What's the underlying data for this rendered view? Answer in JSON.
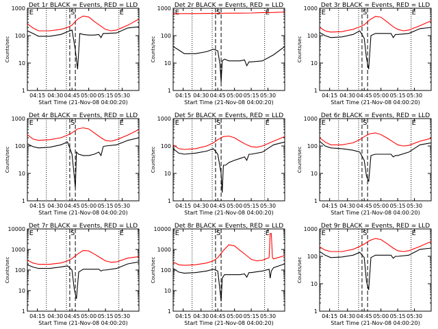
{
  "chart_data": [
    {
      "type": "line",
      "title": "Det 1r BLACK = Events, RED = LLD",
      "xlabel": "Start Time (21-Nov-08 04:00:20)",
      "ylabel": "Counts/sec",
      "yscale": "log",
      "ylim": [
        1,
        1000
      ],
      "xlim": [
        0,
        100
      ],
      "ytick_labels": [
        "1",
        "10",
        "100",
        "1000"
      ],
      "xtick_labels": [
        "04:15",
        "04:30",
        "04:45",
        "05:00",
        "05:15",
        "05:30"
      ],
      "markers": [
        "E",
        "S",
        "E"
      ],
      "series": [
        {
          "color": "#000000",
          "x": [
            0,
            5,
            10,
            20,
            30,
            36,
            40,
            43,
            45,
            47,
            50,
            55,
            60,
            64,
            66,
            68,
            70,
            80,
            90,
            100
          ],
          "y": [
            150,
            120,
            95,
            95,
            110,
            140,
            160,
            30,
            6,
            120,
            110,
            105,
            105,
            110,
            85,
            120,
            120,
            125,
            190,
            210
          ]
        },
        {
          "color": "#ff0000",
          "x": [
            0,
            5,
            10,
            20,
            30,
            36,
            40,
            45,
            50,
            55,
            60,
            66,
            70,
            75,
            80,
            90,
            100
          ],
          "y": [
            270,
            190,
            150,
            150,
            170,
            200,
            240,
            400,
            520,
            480,
            330,
            220,
            170,
            150,
            160,
            240,
            400
          ]
        }
      ]
    },
    {
      "type": "line",
      "title": "Det 2r BLACK = Events, RED = LLD",
      "xlabel": "Start Time (21-Nov-08 04:00:20)",
      "ylabel": "Counts/sec",
      "yscale": "log",
      "ylim": [
        1,
        1000
      ],
      "xlim": [
        0,
        100
      ],
      "ytick_labels": [
        "1",
        "10",
        "100",
        "1000"
      ],
      "xtick_labels": [
        "04:15",
        "04:30",
        "04:45",
        "05:00",
        "05:15",
        "05:30"
      ],
      "markers": [
        "E",
        "S",
        "E"
      ],
      "series": [
        {
          "color": "#000000",
          "x": [
            0,
            5,
            10,
            20,
            30,
            36,
            40,
            42,
            43,
            44,
            46,
            50,
            55,
            60,
            64,
            66,
            68,
            70,
            80,
            90,
            100
          ],
          "y": [
            40,
            30,
            22,
            22,
            26,
            32,
            28,
            9,
            2,
            12,
            14,
            12,
            12,
            12,
            13,
            8,
            11,
            11,
            12,
            20,
            40
          ]
        },
        {
          "color": "#ff0000",
          "x": [
            0,
            10,
            20,
            30,
            40,
            50,
            60,
            70,
            80,
            90,
            100
          ],
          "y": [
            630,
            640,
            640,
            645,
            650,
            660,
            660,
            670,
            690,
            700,
            730
          ]
        }
      ]
    },
    {
      "type": "line",
      "title": "Det 3r BLACK = Events, RED = LLD",
      "xlabel": "Start Time (21-Nov-08 04:00:20)",
      "ylabel": "Counts/sec",
      "yscale": "log",
      "ylim": [
        1,
        1000
      ],
      "xlim": [
        0,
        100
      ],
      "ytick_labels": [
        "1",
        "10",
        "100",
        "1000"
      ],
      "xtick_labels": [
        "04:15",
        "04:30",
        "04:45",
        "05:00",
        "05:15",
        "05:30"
      ],
      "markers": [
        "E",
        "S",
        "E"
      ],
      "series": [
        {
          "color": "#000000",
          "x": [
            0,
            5,
            10,
            20,
            30,
            36,
            40,
            42,
            44,
            46,
            50,
            55,
            60,
            64,
            66,
            68,
            70,
            80,
            90,
            100
          ],
          "y": [
            130,
            100,
            85,
            90,
            110,
            150,
            80,
            15,
            6,
            100,
            120,
            120,
            120,
            120,
            85,
            110,
            110,
            120,
            180,
            200
          ]
        },
        {
          "color": "#ff0000",
          "x": [
            0,
            5,
            10,
            20,
            30,
            36,
            40,
            45,
            50,
            55,
            60,
            66,
            70,
            75,
            80,
            90,
            100
          ],
          "y": [
            200,
            150,
            135,
            140,
            170,
            210,
            250,
            380,
            500,
            470,
            330,
            210,
            170,
            150,
            160,
            230,
            350
          ]
        }
      ]
    },
    {
      "type": "line",
      "title": "Det 4r BLACK = Events, RED = LLD",
      "xlabel": "Start Time (21-Nov-08 04:00:20)",
      "ylabel": "Counts/sec",
      "yscale": "log",
      "ylim": [
        1,
        1000
      ],
      "xlim": [
        0,
        100
      ],
      "ytick_labels": [
        "1",
        "10",
        "100",
        "1000"
      ],
      "xtick_labels": [
        "04:15",
        "04:30",
        "04:45",
        "05:00",
        "05:15",
        "05:30"
      ],
      "markers": [
        "E",
        "S",
        "E"
      ],
      "series": [
        {
          "color": "#000000",
          "x": [
            0,
            5,
            10,
            20,
            30,
            36,
            40,
            42,
            43,
            44,
            46,
            50,
            55,
            60,
            64,
            66,
            68,
            70,
            80,
            90,
            100
          ],
          "y": [
            120,
            95,
            85,
            90,
            110,
            140,
            50,
            8,
            3,
            60,
            50,
            45,
            45,
            50,
            60,
            45,
            95,
            100,
            110,
            160,
            200
          ]
        },
        {
          "color": "#ff0000",
          "x": [
            0,
            5,
            10,
            20,
            30,
            36,
            40,
            45,
            50,
            55,
            60,
            66,
            70,
            75,
            80,
            90,
            100
          ],
          "y": [
            260,
            180,
            160,
            170,
            200,
            250,
            300,
            420,
            460,
            420,
            300,
            200,
            160,
            150,
            170,
            250,
            400
          ]
        }
      ]
    },
    {
      "type": "line",
      "title": "Det 5r BLACK = Events, RED = LLD",
      "xlabel": "Start Time (21-Nov-08 04:00:20)",
      "ylabel": "Counts/sec",
      "yscale": "log",
      "ylim": [
        1,
        1000
      ],
      "xlim": [
        0,
        100
      ],
      "ytick_labels": [
        "1",
        "10",
        "100",
        "1000"
      ],
      "xtick_labels": [
        "04:15",
        "04:30",
        "04:45",
        "05:00",
        "05:15",
        "05:30"
      ],
      "markers": [
        "E",
        "S",
        "E"
      ],
      "series": [
        {
          "color": "#000000",
          "x": [
            0,
            5,
            10,
            20,
            30,
            36,
            40,
            43,
            44,
            45,
            47,
            50,
            55,
            60,
            64,
            66,
            68,
            70,
            80,
            90,
            100
          ],
          "y": [
            80,
            55,
            50,
            55,
            65,
            80,
            50,
            10,
            2,
            20,
            20,
            25,
            30,
            35,
            40,
            30,
            50,
            50,
            60,
            110,
            140
          ]
        },
        {
          "color": "#ff0000",
          "x": [
            0,
            5,
            10,
            20,
            30,
            36,
            40,
            45,
            50,
            55,
            60,
            66,
            70,
            75,
            80,
            90,
            100
          ],
          "y": [
            110,
            80,
            75,
            80,
            100,
            130,
            170,
            220,
            230,
            200,
            150,
            110,
            95,
            90,
            100,
            150,
            220
          ]
        }
      ]
    },
    {
      "type": "line",
      "title": "Det 6r BLACK = Events, RED = LLD",
      "xlabel": "Start Time (21-Nov-08 04:00:20)",
      "ylabel": "Counts/sec",
      "yscale": "log",
      "ylim": [
        1,
        1000
      ],
      "xlim": [
        0,
        100
      ],
      "ytick_labels": [
        "1",
        "10",
        "100",
        "1000"
      ],
      "xtick_labels": [
        "04:15",
        "04:30",
        "04:45",
        "05:00",
        "05:15",
        "05:30"
      ],
      "markers": [
        "E",
        "S",
        "E"
      ],
      "series": [
        {
          "color": "#000000",
          "x": [
            0,
            5,
            10,
            20,
            30,
            36,
            40,
            42,
            44,
            46,
            50,
            55,
            60,
            64,
            66,
            68,
            70,
            80,
            90,
            100
          ],
          "y": [
            150,
            100,
            85,
            80,
            70,
            60,
            30,
            8,
            5,
            45,
            50,
            50,
            50,
            50,
            40,
            45,
            45,
            60,
            110,
            130
          ]
        },
        {
          "color": "#ff0000",
          "x": [
            0,
            5,
            10,
            20,
            30,
            36,
            40,
            45,
            50,
            55,
            60,
            66,
            70,
            75,
            80,
            90,
            100
          ],
          "y": [
            200,
            140,
            110,
            110,
            130,
            170,
            220,
            280,
            300,
            260,
            200,
            140,
            110,
            100,
            105,
            150,
            190
          ]
        }
      ]
    },
    {
      "type": "line",
      "title": "Det 7r BLACK = Events, RED = LLD",
      "xlabel": "Start Time (21-Nov-08 04:00:20)",
      "ylabel": "Counts/sec",
      "yscale": "log",
      "ylim": [
        1,
        10000
      ],
      "xlim": [
        0,
        100
      ],
      "ytick_labels": [
        "1",
        "10",
        "100",
        "1000",
        "10000"
      ],
      "xtick_labels": [
        "04:15",
        "04:30",
        "04:45",
        "05:00",
        "05:15",
        "05:30"
      ],
      "markers": [
        "E",
        "S",
        "E"
      ],
      "series": [
        {
          "color": "#000000",
          "x": [
            0,
            5,
            10,
            20,
            30,
            36,
            40,
            42,
            44,
            46,
            50,
            55,
            60,
            64,
            66,
            68,
            70,
            80,
            90,
            100
          ],
          "y": [
            180,
            140,
            120,
            120,
            140,
            160,
            100,
            12,
            4,
            80,
            110,
            110,
            110,
            110,
            90,
            100,
            100,
            120,
            200,
            250
          ]
        },
        {
          "color": "#ff0000",
          "x": [
            0,
            5,
            10,
            20,
            30,
            36,
            40,
            45,
            50,
            55,
            60,
            66,
            70,
            75,
            80,
            90,
            100
          ],
          "y": [
            300,
            220,
            190,
            190,
            220,
            280,
            360,
            600,
            900,
            850,
            600,
            380,
            280,
            240,
            250,
            380,
            450
          ]
        }
      ]
    },
    {
      "type": "line",
      "title": "Det 8r BLACK = Events, RED = LLD",
      "xlabel": "Start Time (21-Nov-08 04:00:20)",
      "ylabel": "Counts/sec",
      "yscale": "log",
      "ylim": [
        1,
        10000
      ],
      "xlim": [
        0,
        100
      ],
      "ytick_labels": [
        "1",
        "10",
        "100",
        "1000",
        "10000"
      ],
      "xtick_labels": [
        "04:15",
        "04:30",
        "04:45",
        "05:00",
        "05:15",
        "05:30"
      ],
      "markers": [
        "E",
        "S",
        "E"
      ],
      "series": [
        {
          "color": "#000000",
          "x": [
            0,
            5,
            10,
            20,
            30,
            36,
            40,
            42,
            43,
            44,
            46,
            50,
            55,
            60,
            64,
            66,
            68,
            70,
            80,
            86,
            87,
            88,
            90,
            100
          ],
          "y": [
            120,
            80,
            70,
            75,
            90,
            110,
            90,
            10,
            3,
            40,
            60,
            60,
            60,
            60,
            65,
            45,
            75,
            75,
            90,
            110,
            40,
            90,
            130,
            200
          ]
        },
        {
          "color": "#ff0000",
          "x": [
            0,
            5,
            10,
            20,
            30,
            36,
            40,
            45,
            50,
            55,
            60,
            66,
            70,
            75,
            80,
            86,
            87,
            88,
            89,
            90,
            100
          ],
          "y": [
            250,
            180,
            170,
            180,
            220,
            280,
            400,
            900,
            1700,
            1500,
            900,
            500,
            330,
            280,
            300,
            400,
            6000,
            6000,
            400,
            350,
            500
          ]
        }
      ]
    },
    {
      "type": "line",
      "title": "Det 9r BLACK = Events, RED = LLD",
      "xlabel": "Start Time (21-Nov-08 04:00:20)",
      "ylabel": "Counts/sec",
      "yscale": "log",
      "ylim": [
        1,
        1000
      ],
      "xlim": [
        0,
        100
      ],
      "ytick_labels": [
        "1",
        "10",
        "100",
        "1000"
      ],
      "xtick_labels": [
        "04:15",
        "04:30",
        "04:45",
        "05:00",
        "05:15",
        "05:30"
      ],
      "markers": [
        "E",
        "S",
        "E"
      ],
      "series": [
        {
          "color": "#000000",
          "x": [
            0,
            5,
            10,
            20,
            30,
            36,
            40,
            42,
            44,
            46,
            50,
            55,
            60,
            64,
            66,
            68,
            70,
            80,
            90,
            100
          ],
          "y": [
            150,
            110,
            90,
            95,
            110,
            140,
            90,
            12,
            6,
            90,
            110,
            110,
            110,
            110,
            85,
            100,
            100,
            110,
            180,
            200
          ]
        },
        {
          "color": "#ff0000",
          "x": [
            0,
            5,
            10,
            20,
            30,
            36,
            40,
            45,
            50,
            55,
            60,
            66,
            70,
            75,
            80,
            90,
            100
          ],
          "y": [
            220,
            170,
            150,
            150,
            180,
            230,
            280,
            380,
            450,
            410,
            300,
            200,
            160,
            150,
            160,
            230,
            350
          ]
        }
      ]
    }
  ]
}
